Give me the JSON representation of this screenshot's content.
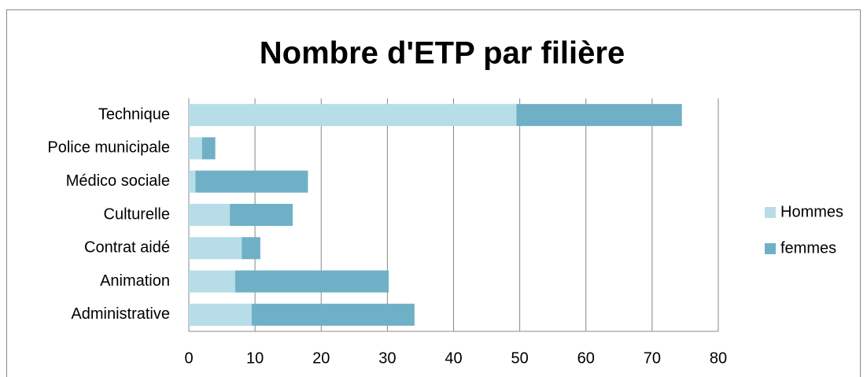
{
  "chart_data": {
    "type": "stacked-bar-horizontal",
    "title": "Nombre d'ETP par filière",
    "categories": [
      "Technique",
      "Police municipale",
      "Médico sociale",
      "Culturelle",
      "Contrat aidé",
      "Animation",
      "Administrative"
    ],
    "series": [
      {
        "name": "Hommes",
        "color": "#b7dde8",
        "values": [
          49.5,
          2,
          1,
          6.2,
          8,
          7,
          9.5
        ]
      },
      {
        "name": "femmes",
        "color": "#6fb0c7",
        "values": [
          25,
          2,
          17,
          9.5,
          2.8,
          23.2,
          24.6
        ]
      }
    ],
    "xlim": [
      0,
      80
    ],
    "xticks": [
      0,
      10,
      20,
      30,
      40,
      50,
      60,
      70,
      80
    ],
    "grid": true,
    "legend": "right"
  }
}
